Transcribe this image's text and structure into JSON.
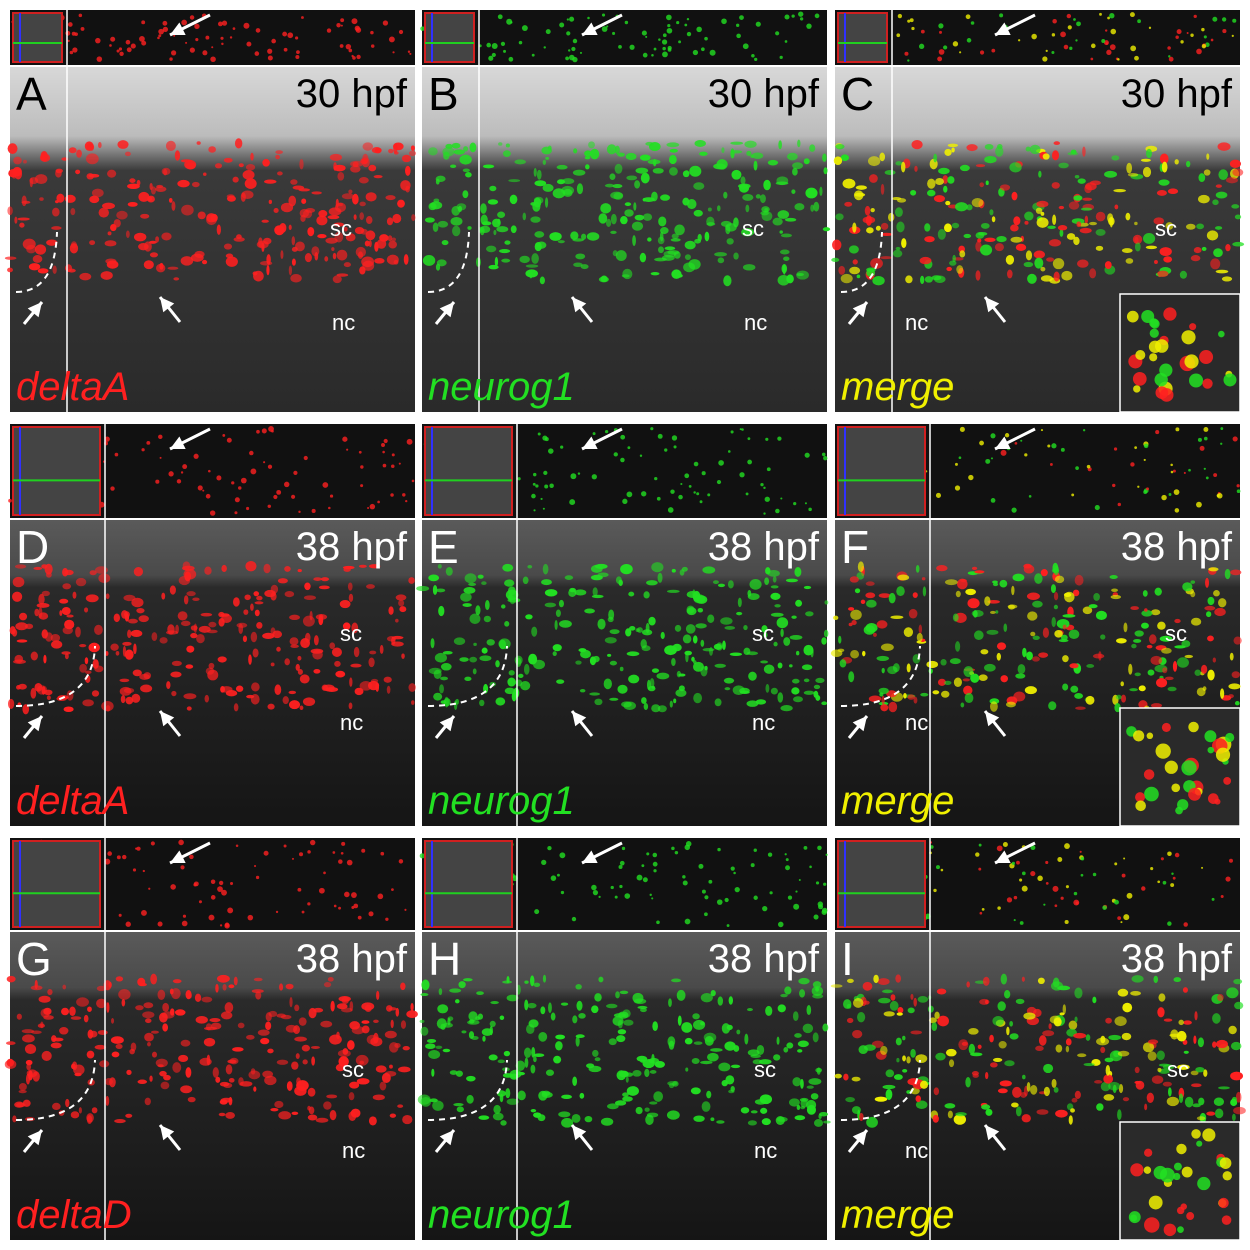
{
  "panels": [
    {
      "letter": "A",
      "stage": "30 hpf",
      "gene": "deltaA",
      "gene_color": "#ff2020",
      "sc": "sc",
      "nc": "nc",
      "inset": false
    },
    {
      "letter": "B",
      "stage": "30 hpf",
      "gene": "neurog1",
      "gene_color": "#22e022",
      "sc": "sc",
      "nc": "nc",
      "inset": false
    },
    {
      "letter": "C",
      "stage": "30 hpf",
      "gene": "merge",
      "gene_color": "#f0f000",
      "sc": "sc",
      "nc": "nc",
      "inset": true
    },
    {
      "letter": "D",
      "stage": "38 hpf",
      "gene": "deltaA",
      "gene_color": "#ff2020",
      "sc": "sc",
      "nc": "nc",
      "inset": false
    },
    {
      "letter": "E",
      "stage": "38 hpf",
      "gene": "neurog1",
      "gene_color": "#22e022",
      "sc": "sc",
      "nc": "nc",
      "inset": false
    },
    {
      "letter": "F",
      "stage": "38 hpf",
      "gene": "merge",
      "gene_color": "#f0f000",
      "sc": "sc",
      "nc": "nc",
      "inset": true
    },
    {
      "letter": "G",
      "stage": "38 hpf",
      "gene": "deltaD",
      "gene_color": "#ff2020",
      "sc": "sc",
      "nc": "nc",
      "inset": false
    },
    {
      "letter": "H",
      "stage": "38 hpf",
      "gene": "neurog1",
      "gene_color": "#22e022",
      "sc": "sc",
      "nc": "nc",
      "inset": false
    },
    {
      "letter": "I",
      "stage": "38 hpf",
      "gene": "merge",
      "gene_color": "#f0f000",
      "sc": "sc",
      "nc": "nc",
      "inset": true
    }
  ]
}
